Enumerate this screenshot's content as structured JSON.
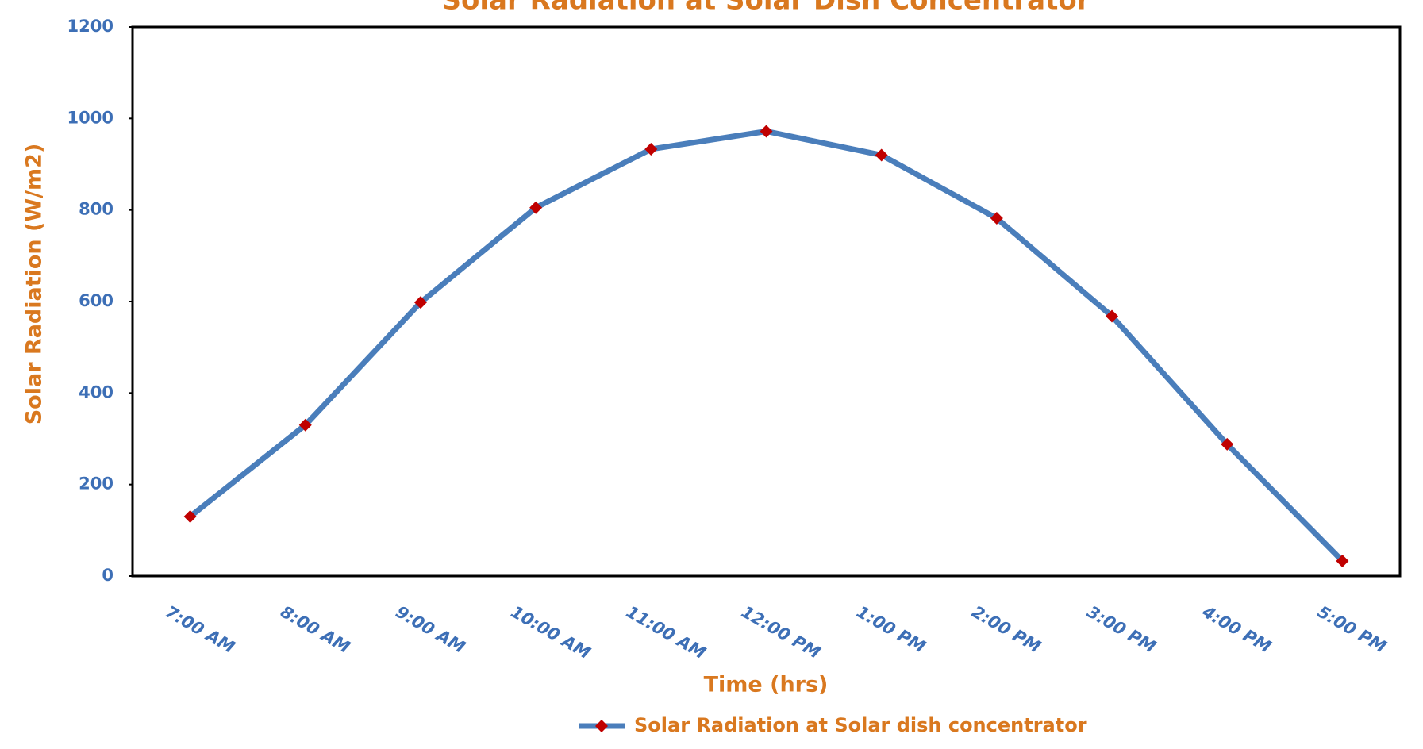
{
  "chart_data": {
    "type": "line",
    "title": "Solar Radiation at Solar Dish Concentrator",
    "xlabel": "Time (hrs)",
    "ylabel": "Solar Radiation (W/m2)",
    "categories": [
      "7:00 AM",
      "8:00 AM",
      "9:00 AM",
      "10:00 AM",
      "11:00 AM",
      "12:00 PM",
      "1:00 PM",
      "2:00 PM",
      "3:00 PM",
      "4:00 PM",
      "5:00 PM"
    ],
    "series": [
      {
        "name": "Solar Radiation at Solar dish concentrator",
        "color": "#4a7ebb",
        "marker_color": "#c00000",
        "values": [
          130,
          330,
          598,
          805,
          933,
          972,
          920,
          782,
          568,
          288,
          33
        ]
      }
    ],
    "ylim": [
      0,
      1200
    ],
    "yticks": [
      0,
      200,
      400,
      600,
      800,
      1000,
      1200
    ],
    "grid": false,
    "legend": "bottom"
  }
}
